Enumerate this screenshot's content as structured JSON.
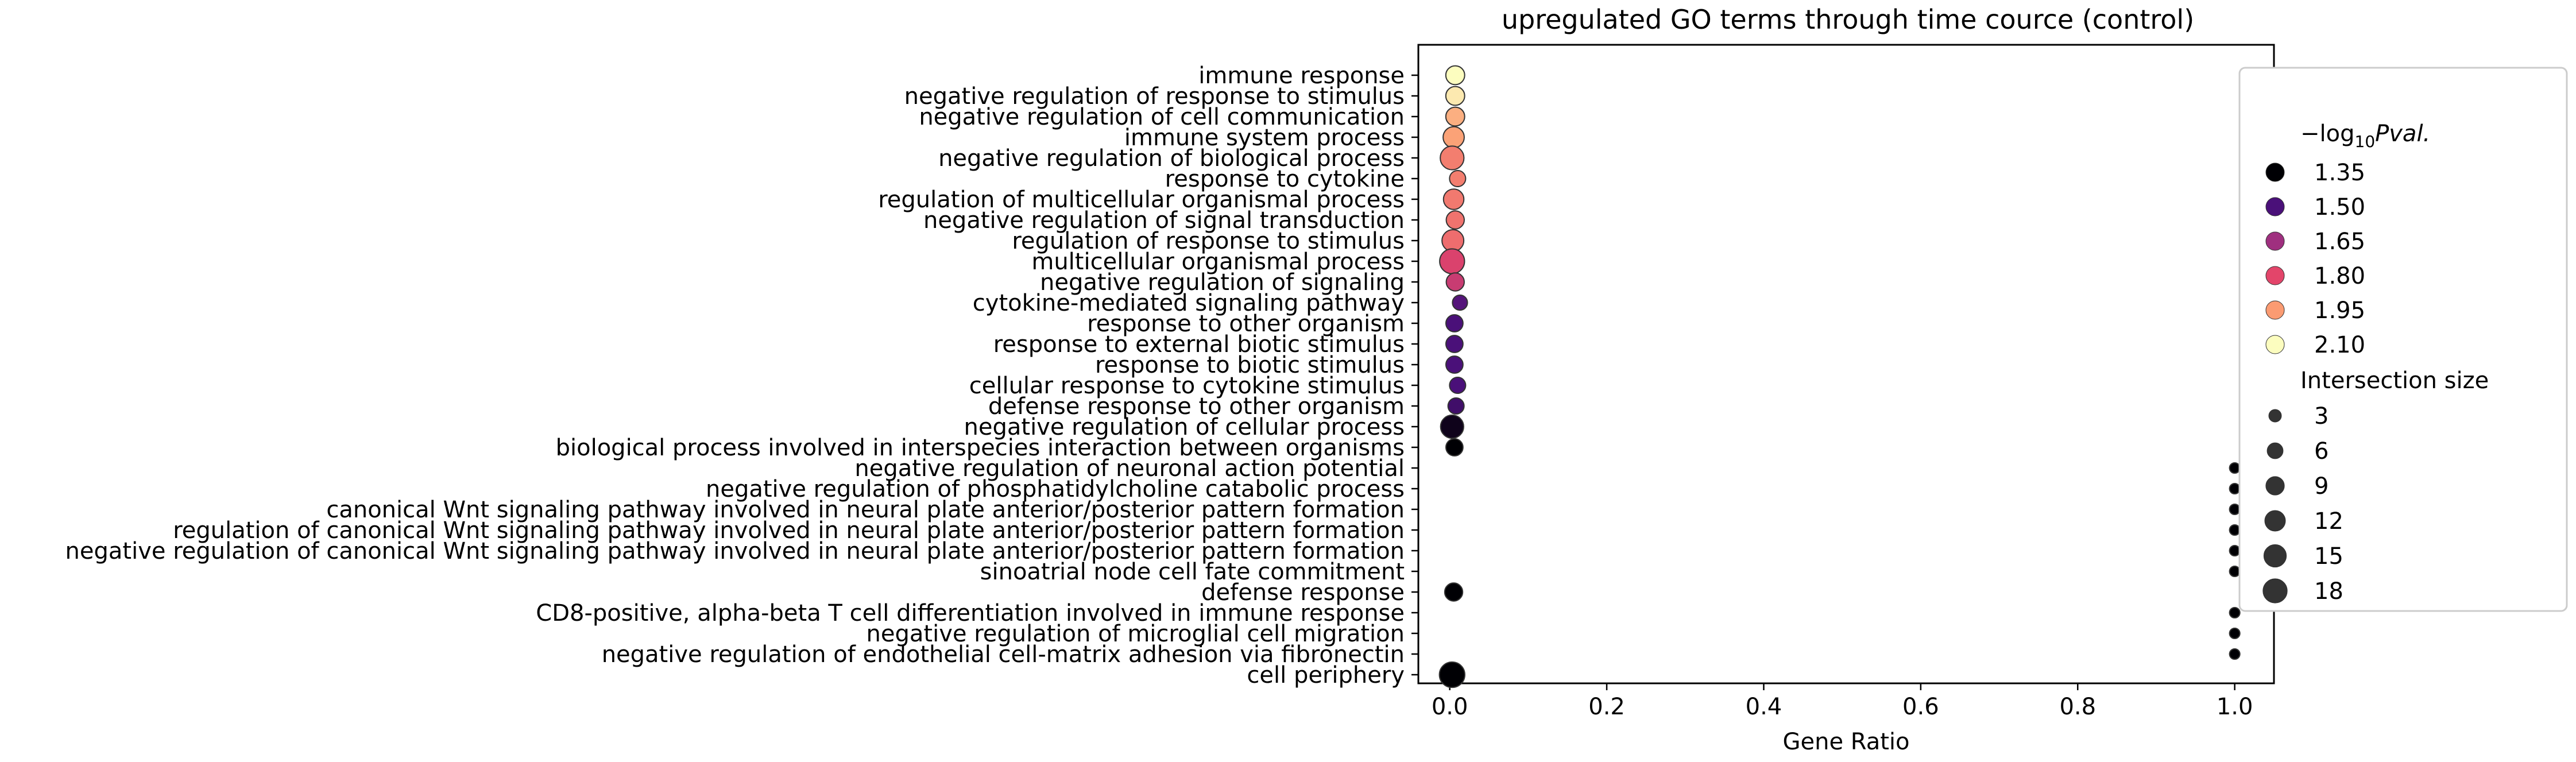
{
  "chart_data": {
    "type": "scatter",
    "title": "upregulated GO terms through time cource (control)",
    "xlabel": "Gene Ratio",
    "ylabel": "",
    "xlim": [
      -0.04,
      1.05
    ],
    "xticks": [
      "0.0",
      "0.2",
      "0.4",
      "0.6",
      "0.8",
      "1.0"
    ],
    "xtick_values": [
      0.0,
      0.2,
      0.4,
      0.6,
      0.8,
      1.0
    ],
    "grid": false,
    "legend_position": "right",
    "colormap": "magma",
    "color_legend": {
      "title_prefix": "−log",
      "title_sub": "10",
      "title_suffix": "Pval.",
      "entries": [
        {
          "label": "1.35",
          "value": 1.35,
          "color": "#000004"
        },
        {
          "label": "1.50",
          "value": 1.5,
          "color": "#4a1079"
        },
        {
          "label": "1.65",
          "value": 1.65,
          "color": "#9f2f7f"
        },
        {
          "label": "1.80",
          "value": 1.8,
          "color": "#e3456a"
        },
        {
          "label": "1.95",
          "value": 1.95,
          "color": "#fb9b72"
        },
        {
          "label": "2.10",
          "value": 2.1,
          "color": "#fcfdbf"
        }
      ]
    },
    "size_legend": {
      "title": "Intersection size",
      "entries": [
        {
          "label": "3",
          "value": 3
        },
        {
          "label": "6",
          "value": 6
        },
        {
          "label": "9",
          "value": 9
        },
        {
          "label": "12",
          "value": 12
        },
        {
          "label": "15",
          "value": 15
        },
        {
          "label": "18",
          "value": 18
        }
      ]
    },
    "points": [
      {
        "term": "immune response",
        "gene_ratio": 0.007,
        "neg_log10_pval": 2.1,
        "intersection_size": 8
      },
      {
        "term": "negative regulation of response to stimulus",
        "gene_ratio": 0.007,
        "neg_log10_pval": 2.07,
        "intersection_size": 8
      },
      {
        "term": "negative regulation of cell communication",
        "gene_ratio": 0.007,
        "neg_log10_pval": 1.98,
        "intersection_size": 8
      },
      {
        "term": "immune system process",
        "gene_ratio": 0.005,
        "neg_log10_pval": 1.96,
        "intersection_size": 11
      },
      {
        "term": "negative regulation of biological process",
        "gene_ratio": 0.003,
        "neg_log10_pval": 1.9,
        "intersection_size": 15
      },
      {
        "term": "response to cytokine",
        "gene_ratio": 0.01,
        "neg_log10_pval": 1.9,
        "intersection_size": 5
      },
      {
        "term": "regulation of multicellular organismal process",
        "gene_ratio": 0.005,
        "neg_log10_pval": 1.89,
        "intersection_size": 10
      },
      {
        "term": "negative regulation of signal transduction",
        "gene_ratio": 0.007,
        "neg_log10_pval": 1.88,
        "intersection_size": 7
      },
      {
        "term": "regulation of response to stimulus",
        "gene_ratio": 0.004,
        "neg_log10_pval": 1.87,
        "intersection_size": 12
      },
      {
        "term": "multicellular organismal process",
        "gene_ratio": 0.003,
        "neg_log10_pval": 1.78,
        "intersection_size": 17
      },
      {
        "term": "negative regulation of signaling",
        "gene_ratio": 0.007,
        "neg_log10_pval": 1.74,
        "intersection_size": 7
      },
      {
        "term": "cytokine-mediated signaling pathway",
        "gene_ratio": 0.013,
        "neg_log10_pval": 1.52,
        "intersection_size": 4
      },
      {
        "term": "response to other organism",
        "gene_ratio": 0.006,
        "neg_log10_pval": 1.5,
        "intersection_size": 6
      },
      {
        "term": "response to external biotic stimulus",
        "gene_ratio": 0.006,
        "neg_log10_pval": 1.5,
        "intersection_size": 6
      },
      {
        "term": "response to biotic stimulus",
        "gene_ratio": 0.006,
        "neg_log10_pval": 1.5,
        "intersection_size": 6
      },
      {
        "term": "cellular response to cytokine stimulus",
        "gene_ratio": 0.01,
        "neg_log10_pval": 1.5,
        "intersection_size": 5
      },
      {
        "term": "defense response to other organism",
        "gene_ratio": 0.008,
        "neg_log10_pval": 1.48,
        "intersection_size": 5
      },
      {
        "term": "negative regulation of cellular process",
        "gene_ratio": 0.003,
        "neg_log10_pval": 1.38,
        "intersection_size": 14
      },
      {
        "term": "biological process involved in interspecies interaction between organisms",
        "gene_ratio": 0.006,
        "neg_log10_pval": 1.35,
        "intersection_size": 6
      },
      {
        "term": "negative regulation of neuronal action potential",
        "gene_ratio": 1.0,
        "neg_log10_pval": 1.35,
        "intersection_size": 1
      },
      {
        "term": "negative regulation of phosphatidylcholine catabolic process",
        "gene_ratio": 1.0,
        "neg_log10_pval": 1.35,
        "intersection_size": 1
      },
      {
        "term": "canonical Wnt signaling pathway involved in neural plate anterior/posterior pattern formation",
        "gene_ratio": 1.0,
        "neg_log10_pval": 1.35,
        "intersection_size": 1
      },
      {
        "term": "regulation of canonical Wnt signaling pathway involved in neural plate anterior/posterior pattern formation",
        "gene_ratio": 1.0,
        "neg_log10_pval": 1.35,
        "intersection_size": 1
      },
      {
        "term": "negative regulation of canonical Wnt signaling pathway involved in neural plate anterior/posterior pattern formation",
        "gene_ratio": 1.0,
        "neg_log10_pval": 1.35,
        "intersection_size": 1
      },
      {
        "term": "sinoatrial node cell fate commitment",
        "gene_ratio": 1.0,
        "neg_log10_pval": 1.35,
        "intersection_size": 1
      },
      {
        "term": "defense response",
        "gene_ratio": 0.005,
        "neg_log10_pval": 1.35,
        "intersection_size": 7
      },
      {
        "term": "CD8-positive, alpha-beta T cell differentiation involved in immune response",
        "gene_ratio": 1.0,
        "neg_log10_pval": 1.35,
        "intersection_size": 1
      },
      {
        "term": "negative regulation of microglial cell migration",
        "gene_ratio": 1.0,
        "neg_log10_pval": 1.35,
        "intersection_size": 1
      },
      {
        "term": "negative regulation of endothelial cell-matrix adhesion via fibronectin",
        "gene_ratio": 1.0,
        "neg_log10_pval": 1.35,
        "intersection_size": 1
      },
      {
        "term": "cell periphery",
        "gene_ratio": 0.003,
        "neg_log10_pval": 1.35,
        "intersection_size": 18
      }
    ]
  }
}
